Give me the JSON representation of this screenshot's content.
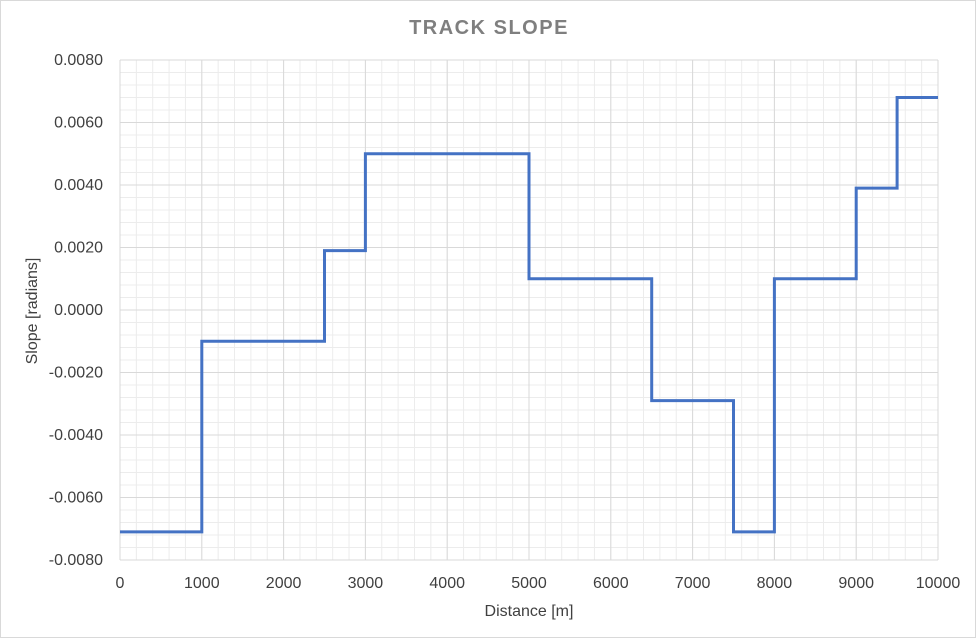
{
  "chart_data": {
    "type": "line",
    "title": "TRACK SLOPE",
    "xlabel": "Distance [m]",
    "ylabel": "Slope [radians]",
    "xlim": [
      0,
      10000
    ],
    "ylim": [
      -0.008,
      0.008
    ],
    "x_ticks": [
      "0",
      "1000",
      "2000",
      "3000",
      "4000",
      "5000",
      "6000",
      "7000",
      "8000",
      "9000",
      "10000"
    ],
    "y_ticks": [
      "0.0080",
      "0.0060",
      "0.0040",
      "0.0020",
      "0.0000",
      "-0.0020",
      "-0.0040",
      "-0.0060",
      "-0.0080"
    ],
    "grid": true,
    "minor_grid": true,
    "legend": "none",
    "series": [
      {
        "color": "#4472c4",
        "x": [
          0,
          1000,
          1000,
          2500,
          2500,
          3000,
          3000,
          5000,
          5000,
          6500,
          6500,
          7500,
          7500,
          8000,
          8000,
          9000,
          9000,
          9500,
          9500,
          10000
        ],
        "y": [
          -0.0071,
          -0.0071,
          -0.001,
          -0.001,
          0.0019,
          0.0019,
          0.005,
          0.005,
          0.001,
          0.001,
          -0.0029,
          -0.0029,
          -0.0071,
          -0.0071,
          0.001,
          0.001,
          0.0039,
          0.0039,
          0.0068,
          0.0068
        ]
      }
    ]
  }
}
